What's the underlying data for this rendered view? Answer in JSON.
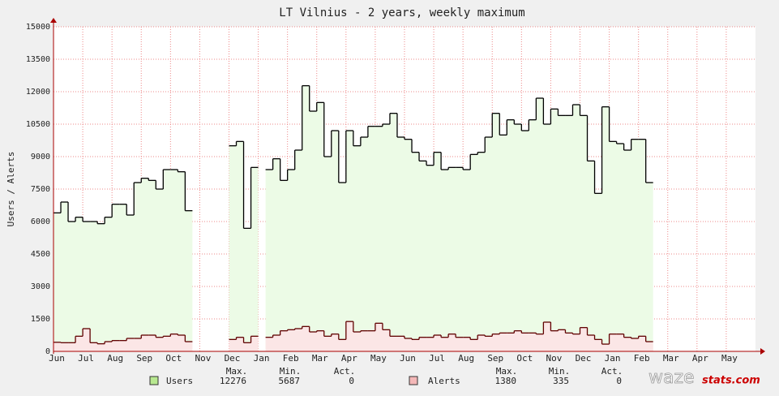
{
  "chart_data": {
    "type": "step-area",
    "title": "LT Vilnius - 2 years, weekly maximum",
    "y_label": "Users / Alerts",
    "xlim": [
      0,
      24
    ],
    "ylim": [
      0,
      15000
    ],
    "grid": true,
    "yticks": [
      0,
      1500,
      3000,
      4500,
      6000,
      7500,
      9000,
      10500,
      12000,
      13500,
      15000
    ],
    "xticks": [
      {
        "value": 0,
        "label": "Jun"
      },
      {
        "value": 1,
        "label": "Jul"
      },
      {
        "value": 2,
        "label": "Aug"
      },
      {
        "value": 3,
        "label": "Sep"
      },
      {
        "value": 4,
        "label": "Oct"
      },
      {
        "value": 5,
        "label": "Nov"
      },
      {
        "value": 6,
        "label": "Dec"
      },
      {
        "value": 7,
        "label": "Jan"
      },
      {
        "value": 8,
        "label": "Feb"
      },
      {
        "value": 9,
        "label": "Mar"
      },
      {
        "value": 10,
        "label": "Apr"
      },
      {
        "value": 11,
        "label": "May"
      },
      {
        "value": 12,
        "label": "Jun"
      },
      {
        "value": 13,
        "label": "Jul"
      },
      {
        "value": 14,
        "label": "Aug"
      },
      {
        "value": 15,
        "label": "Sep"
      },
      {
        "value": 16,
        "label": "Oct"
      },
      {
        "value": 17,
        "label": "Nov"
      },
      {
        "value": 18,
        "label": "Dec"
      },
      {
        "value": 19,
        "label": "Jan"
      },
      {
        "value": 20,
        "label": "Feb"
      },
      {
        "value": 21,
        "label": "Mar"
      },
      {
        "value": 22,
        "label": "Apr"
      },
      {
        "value": 23,
        "label": "May"
      }
    ],
    "x": [
      0,
      0.25,
      0.5,
      0.75,
      1,
      1.25,
      1.5,
      1.75,
      2,
      2.25,
      2.5,
      2.75,
      3,
      3.25,
      3.5,
      3.75,
      4,
      4.25,
      4.5,
      4.75,
      5,
      5.25,
      5.5,
      5.75,
      6,
      6.25,
      6.5,
      6.75,
      7,
      7.25,
      7.5,
      7.75,
      8,
      8.25,
      8.5,
      8.75,
      9,
      9.25,
      9.5,
      9.75,
      10,
      10.25,
      10.5,
      10.75,
      11,
      11.25,
      11.5,
      11.75,
      12,
      12.25,
      12.5,
      12.75,
      13,
      13.25,
      13.5,
      13.75,
      14,
      14.25,
      14.5,
      14.75,
      15,
      15.25,
      15.5,
      15.75,
      16,
      16.25,
      16.5,
      16.75,
      17,
      17.25,
      17.5,
      17.75,
      18,
      18.25,
      18.5,
      18.75,
      19,
      19.25,
      19.5,
      19.75,
      20,
      20.25
    ],
    "stat_labels": [
      "Max.",
      "Min.",
      "Act."
    ],
    "series": [
      {
        "name": "Users",
        "color": "#000000",
        "fill": "#ecfbe6",
        "swatch": "#b8e890",
        "stats": [
          12276,
          5687,
          0
        ],
        "values": [
          6400,
          6900,
          6000,
          6200,
          6000,
          6000,
          5900,
          6200,
          6800,
          6800,
          6300,
          7800,
          8000,
          7900,
          7500,
          8400,
          8400,
          8300,
          6500,
          null,
          null,
          null,
          null,
          null,
          9500,
          9700,
          5687,
          8500,
          null,
          8400,
          8900,
          7900,
          8400,
          9300,
          12276,
          11100,
          11500,
          9000,
          10200,
          7800,
          10200,
          9500,
          9900,
          10400,
          10400,
          10500,
          11000,
          9900,
          9800,
          9200,
          8800,
          8600,
          9200,
          8400,
          8500,
          8500,
          8400,
          9100,
          9200,
          9900,
          11000,
          10000,
          10700,
          10500,
          10200,
          10700,
          11700,
          10500,
          11200,
          10900,
          10900,
          11400,
          10900,
          8800,
          7300,
          11300,
          9700,
          9600,
          9300,
          9800,
          9800,
          7800
        ]
      },
      {
        "name": "Alerts",
        "color": "#600000",
        "fill": "#fbe6e6",
        "swatch": "#f4b8b8",
        "stats": [
          1380,
          335,
          0
        ],
        "values": [
          420,
          400,
          400,
          700,
          1050,
          400,
          350,
          450,
          500,
          500,
          600,
          600,
          750,
          750,
          650,
          700,
          800,
          750,
          450,
          null,
          null,
          null,
          null,
          null,
          550,
          650,
          400,
          700,
          null,
          650,
          750,
          950,
          1000,
          1050,
          1150,
          900,
          950,
          700,
          800,
          550,
          1380,
          900,
          950,
          950,
          1300,
          1000,
          700,
          700,
          600,
          550,
          650,
          650,
          750,
          650,
          800,
          650,
          650,
          550,
          750,
          700,
          800,
          850,
          850,
          950,
          850,
          850,
          800,
          1350,
          950,
          1000,
          850,
          800,
          1100,
          750,
          550,
          335,
          800,
          800,
          650,
          600,
          700,
          450
        ]
      }
    ]
  },
  "logo": [
    "waze",
    "stats.com"
  ]
}
